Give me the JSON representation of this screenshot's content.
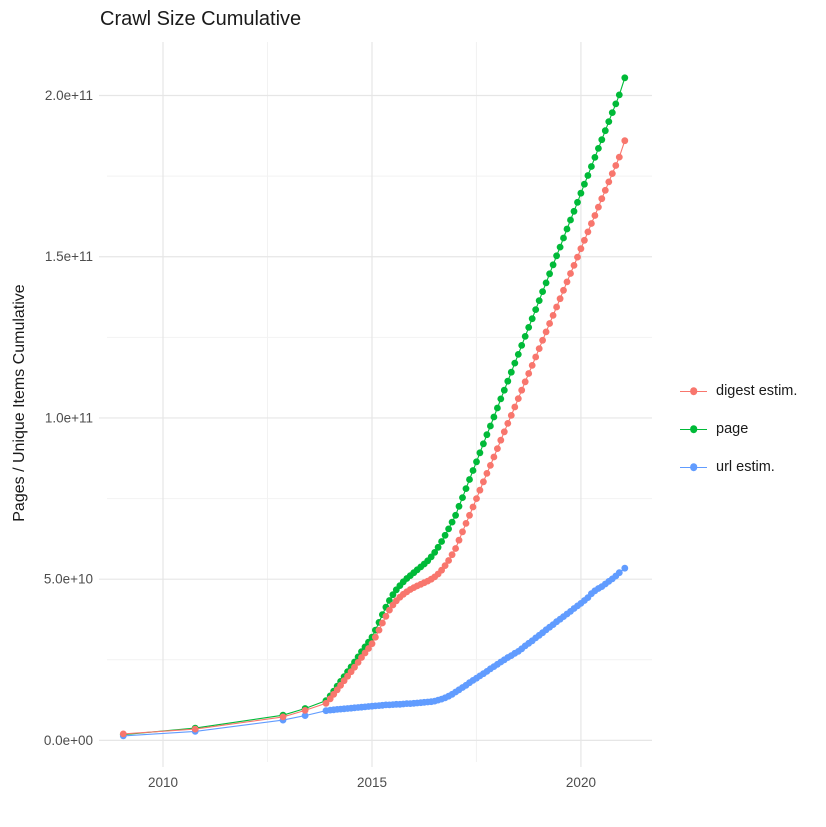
{
  "chart_data": {
    "type": "scatter",
    "title": "Crawl Size Cumulative",
    "xlabel": "",
    "ylabel": "Pages / Unique Items Cumulative",
    "legend_position": "right",
    "grid": true,
    "x_ticks": [
      2010,
      2015,
      2020
    ],
    "y_ticks": [
      {
        "label": "0.0e+00",
        "value_e9": 0
      },
      {
        "label": "5.0e+10",
        "value_e9": 50
      },
      {
        "label": "1.0e+11",
        "value_e9": 100
      },
      {
        "label": "1.5e+11",
        "value_e9": 150
      },
      {
        "label": "2.0e+11",
        "value_e9": 200
      }
    ],
    "xlim": [
      2008.66,
      2021.7
    ],
    "ylim_e9": [
      -6.7,
      216.6
    ],
    "colors": {
      "grid_major": "#e6e6e6",
      "grid_minor": "#f2f2f2",
      "tick_text": "#4d4d4d",
      "title_text": "#1a1a1a"
    },
    "x_years": [
      2009.05,
      2010.77,
      2012.87,
      2013.4,
      2013.9,
      2014.0,
      2014.083,
      2014.167,
      2014.25,
      2014.333,
      2014.417,
      2014.5,
      2014.583,
      2014.667,
      2014.75,
      2014.833,
      2014.917,
      2015.0,
      2015.083,
      2015.167,
      2015.25,
      2015.333,
      2015.417,
      2015.5,
      2015.583,
      2015.667,
      2015.75,
      2015.833,
      2015.917,
      2016.0,
      2016.083,
      2016.167,
      2016.25,
      2016.333,
      2016.417,
      2016.5,
      2016.583,
      2016.667,
      2016.75,
      2016.833,
      2016.917,
      2017.0,
      2017.083,
      2017.167,
      2017.25,
      2017.333,
      2017.417,
      2017.5,
      2017.583,
      2017.667,
      2017.75,
      2017.833,
      2017.917,
      2018.0,
      2018.083,
      2018.167,
      2018.25,
      2018.333,
      2018.417,
      2018.5,
      2018.583,
      2018.667,
      2018.75,
      2018.833,
      2018.917,
      2019.0,
      2019.083,
      2019.167,
      2019.25,
      2019.333,
      2019.417,
      2019.5,
      2019.583,
      2019.667,
      2019.75,
      2019.833,
      2019.917,
      2020.0,
      2020.083,
      2020.167,
      2020.25,
      2020.333,
      2020.417,
      2020.5,
      2020.583,
      2020.667,
      2020.75,
      2020.833,
      2020.917,
      2021.05
    ],
    "series": [
      {
        "name": "page",
        "color": "#00BA38",
        "values_e9": [
          1.8,
          3.8,
          7.8,
          9.9,
          12.3,
          13.8,
          15.3,
          16.8,
          18.3,
          19.8,
          21.3,
          22.8,
          24.3,
          25.9,
          27.5,
          29.0,
          30.5,
          32.0,
          34.2,
          36.6,
          39.0,
          41.3,
          43.4,
          45.2,
          46.7,
          48.0,
          49.2,
          50.2,
          51.1,
          52.0,
          52.9,
          53.8,
          54.7,
          55.7,
          56.9,
          58.3,
          59.9,
          61.7,
          63.6,
          65.6,
          67.7,
          69.8,
          72.6,
          75.3,
          78.1,
          80.9,
          83.7,
          86.4,
          89.2,
          92.0,
          94.8,
          97.5,
          100.3,
          103.1,
          105.9,
          108.6,
          111.4,
          114.2,
          117.0,
          119.7,
          122.5,
          125.3,
          128.1,
          130.8,
          133.6,
          136.4,
          139.2,
          141.9,
          144.7,
          147.5,
          150.3,
          153.0,
          155.8,
          158.6,
          161.4,
          164.1,
          166.9,
          169.7,
          172.5,
          175.2,
          178.0,
          180.8,
          183.6,
          186.3,
          189.1,
          191.9,
          194.7,
          197.4,
          200.2,
          205.5
        ]
      },
      {
        "name": "url estim.",
        "color": "#619CFF",
        "values_e9": [
          1.4,
          2.8,
          6.3,
          7.7,
          9.2,
          9.4,
          9.5,
          9.6,
          9.7,
          9.8,
          9.9,
          10.0,
          10.1,
          10.2,
          10.3,
          10.4,
          10.5,
          10.6,
          10.7,
          10.8,
          10.9,
          11.0,
          11.0,
          11.1,
          11.2,
          11.2,
          11.3,
          11.4,
          11.4,
          11.5,
          11.6,
          11.7,
          11.8,
          11.9,
          12.0,
          12.2,
          12.5,
          12.8,
          13.2,
          13.7,
          14.3,
          15.0,
          15.7,
          16.4,
          17.1,
          17.9,
          18.6,
          19.3,
          20.0,
          20.7,
          21.4,
          22.2,
          22.9,
          23.6,
          24.3,
          25.0,
          25.7,
          26.3,
          27.0,
          27.6,
          28.4,
          29.3,
          30.1,
          30.9,
          31.8,
          32.6,
          33.4,
          34.3,
          35.1,
          35.9,
          36.8,
          37.6,
          38.4,
          39.2,
          40.0,
          40.9,
          41.7,
          42.5,
          43.4,
          44.3,
          45.5,
          46.4,
          47.1,
          47.7,
          48.5,
          49.3,
          50.1,
          51.0,
          52.0,
          53.4
        ]
      },
      {
        "name": "digest estim.",
        "color": "#F8766D",
        "values_e9": [
          2.0,
          3.5,
          7.3,
          9.3,
          11.5,
          12.9,
          14.3,
          15.7,
          17.1,
          18.5,
          19.9,
          21.3,
          22.7,
          24.2,
          25.7,
          27.1,
          28.5,
          30.0,
          32.0,
          34.2,
          36.4,
          38.5,
          40.4,
          42.0,
          43.3,
          44.4,
          45.3,
          46.1,
          46.8,
          47.4,
          47.9,
          48.4,
          48.9,
          49.4,
          50.0,
          50.7,
          51.6,
          52.8,
          54.2,
          55.8,
          57.6,
          59.5,
          62.1,
          64.7,
          67.3,
          69.8,
          72.4,
          75.0,
          77.6,
          80.2,
          82.8,
          85.3,
          87.9,
          90.5,
          93.1,
          95.7,
          98.3,
          100.8,
          103.4,
          106.0,
          108.6,
          111.2,
          113.8,
          116.3,
          118.9,
          121.5,
          124.1,
          126.7,
          129.3,
          131.8,
          134.4,
          137.0,
          139.6,
          142.2,
          144.8,
          147.3,
          149.9,
          152.5,
          155.1,
          157.7,
          160.3,
          162.8,
          165.4,
          168.0,
          170.6,
          173.2,
          175.8,
          178.3,
          180.9,
          186.0
        ]
      }
    ],
    "legend_items": [
      {
        "name": "digest estim.",
        "color": "#F8766D"
      },
      {
        "name": "page",
        "color": "#00BA38"
      },
      {
        "name": "url estim.",
        "color": "#619CFF"
      }
    ]
  }
}
